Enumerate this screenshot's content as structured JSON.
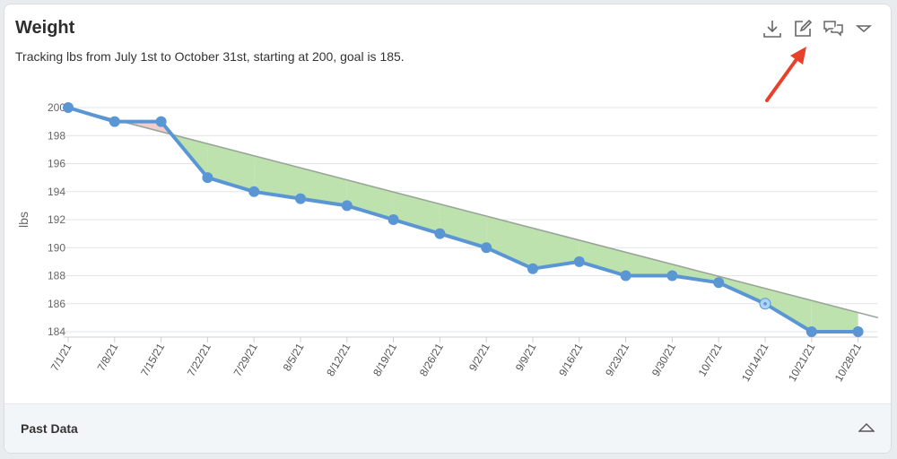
{
  "card": {
    "title": "Weight",
    "subtitle": "Tracking lbs from July 1st to October 31st, starting at 200, goal is 185.",
    "footer_label": "Past Data"
  },
  "toolbar": {
    "icons": [
      "download-icon",
      "edit-icon",
      "comments-icon",
      "menu-dropdown-icon"
    ]
  },
  "colors": {
    "actual_line": "#5b96d4",
    "goal_line": "#9aa59a",
    "below_goal_fill": "#b9e0a9",
    "above_goal_fill": "#f3c9cb",
    "highlight_point": "#a9d4f5",
    "annotation_arrow": "#e8402a"
  },
  "chart_data": {
    "type": "line",
    "title": "",
    "xlabel": "",
    "ylabel": "lbs",
    "ylim": [
      184,
      200
    ],
    "yticks": [
      184,
      186,
      188,
      190,
      192,
      194,
      196,
      198,
      200
    ],
    "grid": true,
    "categories": [
      "7/1/21",
      "7/8/21",
      "7/15/21",
      "7/22/21",
      "7/29/21",
      "8/5/21",
      "8/12/21",
      "8/19/21",
      "8/26/21",
      "9/2/21",
      "9/9/21",
      "9/16/21",
      "9/23/21",
      "9/30/21",
      "10/7/21",
      "10/14/21",
      "10/21/21",
      "10/28/21"
    ],
    "series": [
      {
        "values": [
          200,
          199,
          199,
          195,
          194,
          193.5,
          193,
          192,
          191,
          190,
          188.5,
          189,
          188,
          188,
          187.5,
          186,
          184,
          184
        ]
      },
      {
        "role": "goal-trend",
        "start_date": "7/1/21",
        "start_value": 200,
        "end_date": "10/31/21",
        "end_value": 185
      }
    ]
  }
}
